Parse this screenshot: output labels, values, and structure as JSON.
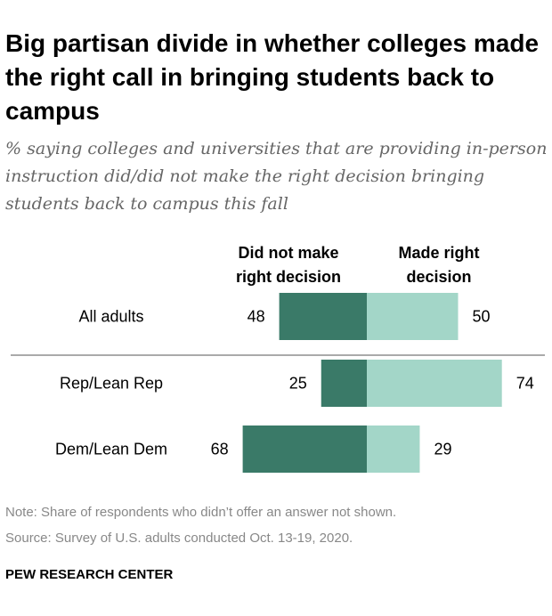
{
  "chart_data": {
    "type": "bar",
    "orientation": "horizontal-diverging",
    "title": "Big partisan divide in whether colleges made the right call in bringing students back to campus",
    "subtitle": "% saying colleges and universities that are providing in-person instruction did/did not make the right decision bringing students back to campus this fall",
    "categories": [
      "All adults",
      "Rep/Lean Rep",
      "Dem/Lean Dem"
    ],
    "series": [
      {
        "name": "Did not make right decision",
        "label_lines": [
          "Did not make",
          "right decision"
        ],
        "side": "left",
        "color": "#3a7a68",
        "values": [
          48,
          25,
          68
        ]
      },
      {
        "name": "Made right decision",
        "label_lines": [
          "Made right",
          "decision"
        ],
        "side": "right",
        "color": "#a3d6c8",
        "values": [
          50,
          74,
          29
        ]
      }
    ],
    "separator_after_category": 0
  },
  "note": "Note: Share of respondents who didn’t offer an answer not shown.",
  "source": "Source: Survey of U.S. adults conducted Oct. 13-19, 2020.",
  "brand": "PEW RESEARCH CENTER"
}
